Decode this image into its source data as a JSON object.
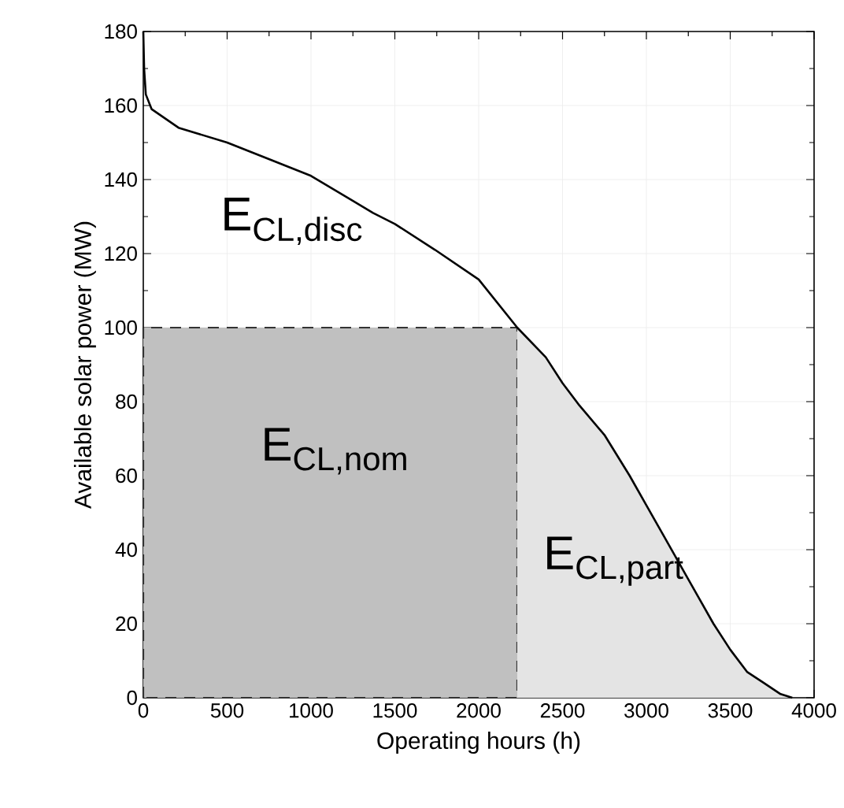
{
  "chart_data": {
    "type": "line",
    "xlabel": "Operating hours (h)",
    "ylabel": "Available solar power (MW)",
    "xlim": [
      0,
      4000
    ],
    "ylim": [
      0,
      180
    ],
    "xticks": [
      0,
      500,
      1000,
      1500,
      2000,
      2500,
      3000,
      3500,
      4000
    ],
    "yticks": [
      0,
      20,
      40,
      60,
      80,
      100,
      120,
      140,
      160,
      180
    ],
    "grid": true,
    "series": [
      {
        "type": "area",
        "color": "#c0c0c0",
        "line_style": "dashed",
        "x": [
          0,
          2230
        ],
        "values": [
          100,
          100
        ]
      },
      {
        "type": "area",
        "color": "#e4e4e4",
        "line_style": "none",
        "x": [
          2230,
          2400,
          2500,
          2600,
          2750,
          2900,
          3000,
          3100,
          3250,
          3400,
          3500,
          3600,
          3700,
          3800,
          3870
        ],
        "values": [
          100,
          92,
          85,
          79,
          71,
          60,
          52,
          44,
          32,
          20,
          13,
          7,
          4,
          1,
          0
        ]
      },
      {
        "color": "#000000",
        "x": [
          0,
          5,
          15,
          50,
          210,
          500,
          740,
          1000,
          1370,
          1500,
          1740,
          2000,
          2230,
          2400,
          2500,
          2600,
          2750,
          2900,
          3000,
          3100,
          3250,
          3400,
          3500,
          3600,
          3700,
          3800,
          3870
        ],
        "values": [
          180,
          170,
          163,
          159,
          154,
          150,
          145.7,
          141,
          131,
          128,
          121,
          113,
          100,
          92,
          85,
          79,
          71,
          60,
          52,
          44,
          32,
          20,
          13,
          7,
          4,
          1,
          0
        ]
      }
    ],
    "annotations": [
      "E$_{CL,disc}$",
      "E$_{CL,nom}$",
      "E$_{CL,part}$"
    ]
  }
}
